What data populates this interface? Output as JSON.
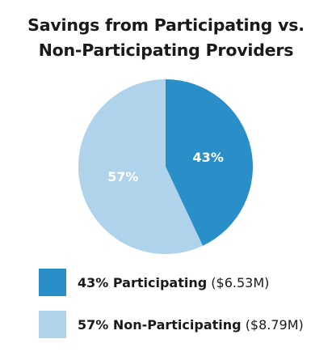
{
  "chart_data": {
    "type": "pie",
    "title": "Savings from Participating vs. Non-Participating Providers",
    "title_lines": [
      "Savings from Participating vs.",
      "Non-Participating Providers"
    ],
    "slices": [
      {
        "label": "Participating",
        "percent": 43,
        "percent_label": "43%",
        "amount": "($6.53M)",
        "legend_bold": "43% Participating",
        "color": "#2a8fc9"
      },
      {
        "label": "Non-Participating",
        "percent": 57,
        "percent_label": "57%",
        "amount": "($8.79M)",
        "legend_bold": "57% Non-Participating",
        "color": "#aed3ea"
      }
    ],
    "start_angle": "12 o'clock, clockwise",
    "legend_position": "bottom-left"
  }
}
